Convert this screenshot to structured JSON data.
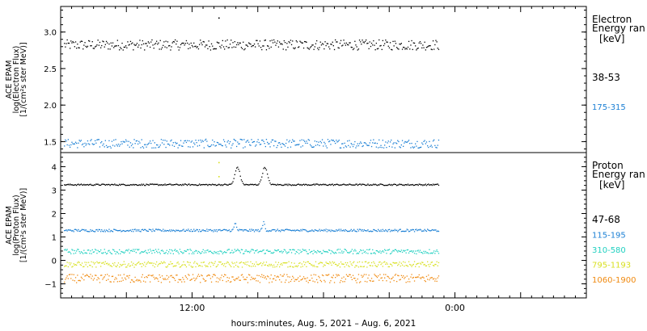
{
  "chart_data": [
    {
      "type": "scatter",
      "panel": "electron",
      "ylabel_lines": [
        "ACE EPAM",
        "log(Electron Flux)",
        "[1/(cm²s ster MeV)]"
      ],
      "ylim": [
        1.35,
        3.35
      ],
      "yticks": [
        1.5,
        2.0,
        2.5,
        3.0
      ],
      "ytick_labels": [
        "1.5",
        "2.0",
        "2.5",
        "3.0"
      ],
      "legend_title": [
        "Electron",
        "Energy ran"
      ],
      "legend_unit": "[keV]",
      "series": [
        {
          "name": "38-53",
          "color": "#000000",
          "level": 2.83,
          "noise": 0.07,
          "outliers": [
            {
              "t": 14.4,
              "v": 3.2
            }
          ]
        },
        {
          "name": "175-315",
          "color": "#1a7fd4",
          "level": 1.48,
          "noise": 0.06,
          "outliers": []
        }
      ]
    },
    {
      "type": "scatter",
      "panel": "proton",
      "ylabel_lines": [
        "ACE EPAM",
        "log(Proton Flux)",
        "[1/(cm²s ster MeV)]"
      ],
      "ylim": [
        -1.6,
        4.6
      ],
      "yticks": [
        -1,
        0,
        1,
        2,
        3,
        4
      ],
      "ytick_labels": [
        "−1",
        "0",
        "1",
        "2",
        "3",
        "4"
      ],
      "legend_title": [
        "Proton",
        "Energy ran"
      ],
      "legend_unit": "[keV]",
      "series": [
        {
          "name": "47-68",
          "color": "#000000",
          "level": 3.25,
          "noise": 0.03,
          "bumps": [
            {
              "t": 16.1,
              "w": 0.45,
              "h": 0.75
            },
            {
              "t": 18.6,
              "w": 0.45,
              "h": 0.75
            }
          ]
        },
        {
          "name": "115-195",
          "color": "#1a7fd4",
          "level": 1.3,
          "noise": 0.05,
          "bumps": [
            {
              "t": 15.9,
              "w": 0.2,
              "h": 0.3
            },
            {
              "t": 18.5,
              "w": 0.2,
              "h": 0.35
            }
          ]
        },
        {
          "name": "310-580",
          "color": "#20d0c0",
          "level": 0.4,
          "noise": 0.1,
          "bumps": []
        },
        {
          "name": "795-1193",
          "color": "#d8e020",
          "level": -0.15,
          "noise": 0.12,
          "bumps": [],
          "outliers": [
            {
              "t": 14.4,
              "v": 4.2
            },
            {
              "t": 14.4,
              "v": 3.6
            }
          ]
        },
        {
          "name": "1060-1900",
          "color": "#f08a10",
          "level": -0.75,
          "noise": 0.18,
          "bumps": []
        }
      ]
    }
  ],
  "x_axis": {
    "range_hours": [
      0,
      48
    ],
    "data_end_hours": 34.5,
    "tick_labels": [
      {
        "t": 12,
        "label": "12:00"
      },
      {
        "t": 36,
        "label": "0:00"
      }
    ],
    "xlabel": "hours:minutes, Aug.  5, 2021 – Aug.  6, 2021"
  }
}
